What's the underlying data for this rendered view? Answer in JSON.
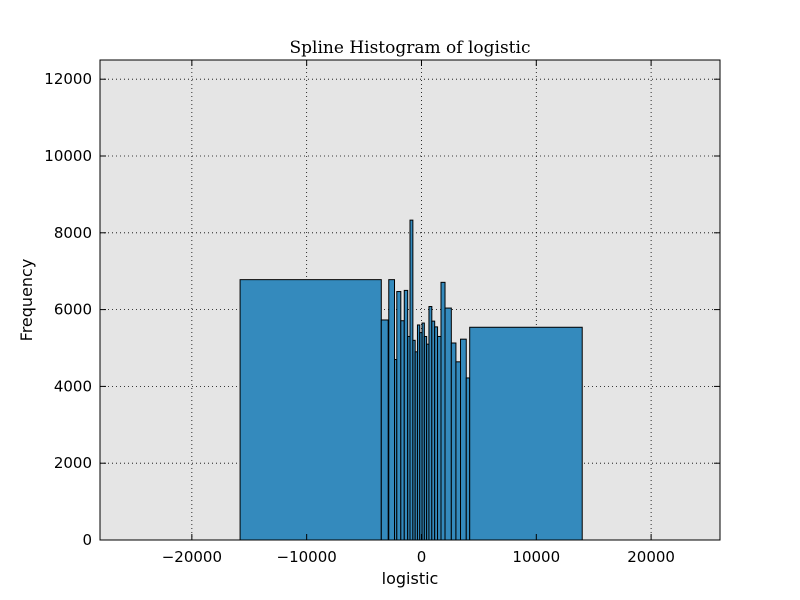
{
  "chart_data": {
    "type": "bar",
    "title": "Spline Histogram of logistic",
    "xlabel": "logistic",
    "ylabel": "Frequency",
    "xlim": [
      -28000,
      26000
    ],
    "ylim": [
      0,
      12500
    ],
    "xticks": [
      -20000,
      -10000,
      0,
      10000,
      20000
    ],
    "xtick_labels": [
      "−20000",
      "−10000",
      "0",
      "10000",
      "20000"
    ],
    "yticks": [
      0,
      2000,
      4000,
      6000,
      8000,
      10000,
      12000
    ],
    "ytick_labels": [
      "0",
      "2000",
      "4000",
      "6000",
      "8000",
      "10000",
      "12000"
    ],
    "grid": true,
    "background": "#e5e5e5",
    "bar_color": "#348abd",
    "edge_color": "#000000",
    "bins": [
      {
        "x0": -15800,
        "x1": -3500,
        "value": 6780
      },
      {
        "x0": -3500,
        "x1": -2900,
        "value": 5730
      },
      {
        "x0": -2850,
        "x1": -2350,
        "value": 6780
      },
      {
        "x0": -2350,
        "x1": -2150,
        "value": 4700
      },
      {
        "x0": -2150,
        "x1": -1800,
        "value": 6470
      },
      {
        "x0": -1800,
        "x1": -1500,
        "value": 5710
      },
      {
        "x0": -1500,
        "x1": -1200,
        "value": 6500
      },
      {
        "x0": -1200,
        "x1": -1000,
        "value": 5300
      },
      {
        "x0": -1000,
        "x1": -750,
        "value": 8330
      },
      {
        "x0": -750,
        "x1": -550,
        "value": 5200
      },
      {
        "x0": -550,
        "x1": -350,
        "value": 4900
      },
      {
        "x0": -350,
        "x1": -150,
        "value": 5600
      },
      {
        "x0": -150,
        "x1": 50,
        "value": 5400
      },
      {
        "x0": 50,
        "x1": 250,
        "value": 5650
      },
      {
        "x0": 250,
        "x1": 450,
        "value": 5300
      },
      {
        "x0": 450,
        "x1": 650,
        "value": 5100
      },
      {
        "x0": 650,
        "x1": 900,
        "value": 6080
      },
      {
        "x0": 900,
        "x1": 1150,
        "value": 5700
      },
      {
        "x0": 1150,
        "x1": 1400,
        "value": 5550
      },
      {
        "x0": 1400,
        "x1": 1700,
        "value": 5300
      },
      {
        "x0": 1700,
        "x1": 2050,
        "value": 6710
      },
      {
        "x0": 2050,
        "x1": 2600,
        "value": 6040
      },
      {
        "x0": 2600,
        "x1": 3000,
        "value": 5130
      },
      {
        "x0": 3000,
        "x1": 3400,
        "value": 4640
      },
      {
        "x0": 3400,
        "x1": 3900,
        "value": 5230
      },
      {
        "x0": 3900,
        "x1": 4200,
        "value": 4220
      },
      {
        "x0": 4200,
        "x1": 14000,
        "value": 5540
      }
    ]
  }
}
